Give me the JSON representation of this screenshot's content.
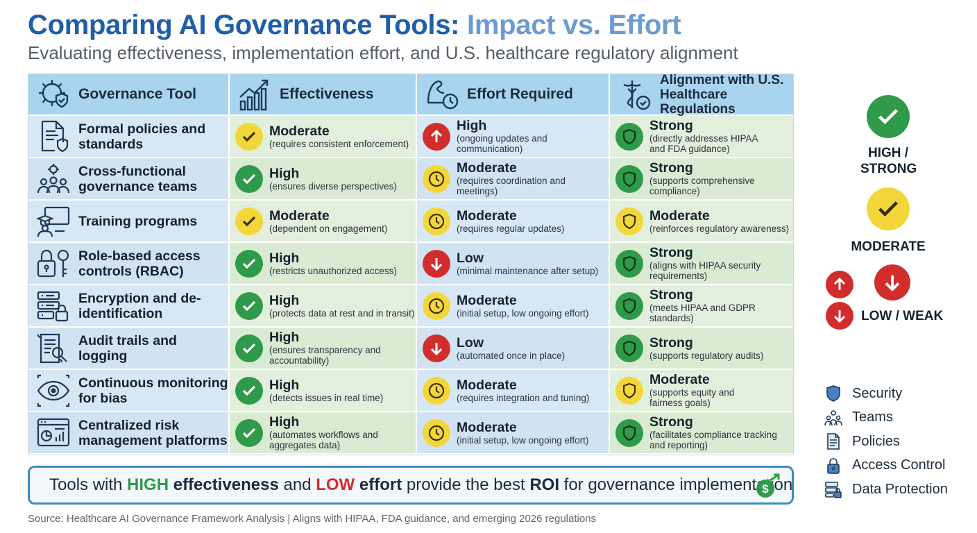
{
  "title": {
    "part1": "Comparing AI Governance Tools:",
    "part2": "Impact vs. Effort"
  },
  "subtitle": "Evaluating effectiveness, implementation effort, and U.S. healthcare regulatory alignment",
  "table": {
    "headers": [
      "Governance Tool",
      "Effectiveness",
      "Effort Required",
      "Alignment with U.S. Healthcare Regulations"
    ],
    "rows": [
      {
        "tool": "Formal policies and standards",
        "tool_icon": "policy-document-shield-icon",
        "effectiveness": {
          "level": "Moderate",
          "note": "(requires consistent enforcement)",
          "status": "moderate"
        },
        "effort": {
          "level": "High",
          "note": "(ongoing updates and communication)",
          "status": "up"
        },
        "alignment": {
          "level": "Strong",
          "note": "(directly addresses HIPAA and FDA guidance)",
          "status": "strong"
        }
      },
      {
        "tool": "Cross-functional governance teams",
        "tool_icon": "team-gear-icon",
        "effectiveness": {
          "level": "High",
          "note": "(ensures diverse perspectives)",
          "status": "high"
        },
        "effort": {
          "level": "Moderate",
          "note": "(requires coordination and meetings)",
          "status": "clock"
        },
        "alignment": {
          "level": "Strong",
          "note": "(supports comprehensive compliance)",
          "status": "strong"
        }
      },
      {
        "tool": "Training programs",
        "tool_icon": "training-screen-icon",
        "effectiveness": {
          "level": "Moderate",
          "note": "(dependent on engagement)",
          "status": "moderate"
        },
        "effort": {
          "level": "Moderate",
          "note": "(requires regular updates)",
          "status": "clock"
        },
        "alignment": {
          "level": "Moderate",
          "note": "(reinforces regulatory awareness)",
          "status": "moderate-shield"
        }
      },
      {
        "tool": "Role-based access controls (RBAC)",
        "tool_icon": "lock-key-icon",
        "effectiveness": {
          "level": "High",
          "note": "(restricts unauthorized access)",
          "status": "high"
        },
        "effort": {
          "level": "Low",
          "note": "(minimal maintenance after setup)",
          "status": "down"
        },
        "alignment": {
          "level": "Strong",
          "note": "(aligns with HIPAA security requirements)",
          "status": "strong"
        }
      },
      {
        "tool": "Encryption and de-identification",
        "tool_icon": "server-lock-icon",
        "effectiveness": {
          "level": "High",
          "note": "(protects data at rest and in transit)",
          "status": "high"
        },
        "effort": {
          "level": "Moderate",
          "note": "(initial setup, low ongoing effort)",
          "status": "clock"
        },
        "alignment": {
          "level": "Strong",
          "note": "(meets HIPAA and GDPR standards)",
          "status": "strong"
        }
      },
      {
        "tool": "Audit trails and logging",
        "tool_icon": "audit-scroll-magnifier-icon",
        "effectiveness": {
          "level": "High",
          "note": "(ensures transparency and accountability)",
          "status": "high"
        },
        "effort": {
          "level": "Low",
          "note": "(automated once in place)",
          "status": "down"
        },
        "alignment": {
          "level": "Strong",
          "note": "(supports regulatory audits)",
          "status": "strong"
        }
      },
      {
        "tool": "Continuous monitoring for bias",
        "tool_icon": "eye-monitoring-icon",
        "effectiveness": {
          "level": "High",
          "note": "(detects issues in real time)",
          "status": "high"
        },
        "effort": {
          "level": "Moderate",
          "note": "(requires integration and tuning)",
          "status": "clock"
        },
        "alignment": {
          "level": "Moderate",
          "note": "(supports equity and fairness goals)",
          "status": "moderate-shield"
        }
      },
      {
        "tool": "Centralized risk management platforms",
        "tool_icon": "dashboard-chart-icon",
        "effectiveness": {
          "level": "High",
          "note": "(automates workflows and aggregates data)",
          "status": "high"
        },
        "effort": {
          "level": "Moderate",
          "note": "(initial setup, low ongoing effort)",
          "status": "clock"
        },
        "alignment": {
          "level": "Strong",
          "note": "(facilitates compliance tracking and reporting)",
          "status": "strong"
        }
      }
    ]
  },
  "banner": {
    "part1": "Tools with",
    "high": "HIGH",
    "part2": "effectiveness",
    "part3": "and",
    "low": "LOW",
    "part4": "effort",
    "part5": "provide the best",
    "roi": "ROI",
    "part6": "for governance implementation",
    "icon": "dollar-growth-icon"
  },
  "source": "Source: Healthcare AI Governance Framework Analysis | Aligns with HIPAA, FDA guidance, and emerging 2026 regulations",
  "key": {
    "high": "HIGH / STRONG",
    "moderate": "MODERATE",
    "low": "LOW / WEAK"
  },
  "icon_legend": [
    {
      "icon": "shield-icon",
      "label": "Security"
    },
    {
      "icon": "teams-icon",
      "label": "Teams"
    },
    {
      "icon": "policy-document-icon",
      "label": "Policies"
    },
    {
      "icon": "padlock-icon",
      "label": "Access Control"
    },
    {
      "icon": "data-protection-icon",
      "label": "Data Protection"
    }
  ],
  "colors": {
    "title_dark": "#1f5ea8",
    "title_light": "#6b9bd1",
    "green": "#2f9a49",
    "yellow": "#f3d73a",
    "red": "#d22d2d",
    "header_blue": "#a9d4ef"
  }
}
